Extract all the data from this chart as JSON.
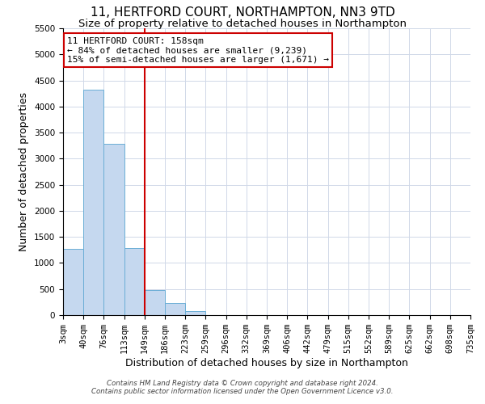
{
  "title": "11, HERTFORD COURT, NORTHAMPTON, NN3 9TD",
  "subtitle": "Size of property relative to detached houses in Northampton",
  "xlabel": "Distribution of detached houses by size in Northampton",
  "ylabel": "Number of detached properties",
  "bin_labels": [
    "3sqm",
    "40sqm",
    "76sqm",
    "113sqm",
    "149sqm",
    "186sqm",
    "223sqm",
    "259sqm",
    "296sqm",
    "332sqm",
    "369sqm",
    "406sqm",
    "442sqm",
    "479sqm",
    "515sqm",
    "552sqm",
    "589sqm",
    "625sqm",
    "662sqm",
    "698sqm",
    "735sqm"
  ],
  "bar_values": [
    1270,
    4330,
    3280,
    1290,
    480,
    230,
    75,
    0,
    0,
    0,
    0,
    0,
    0,
    0,
    0,
    0,
    0,
    0,
    0,
    0
  ],
  "bar_color": "#c5d8ef",
  "bar_edge_color": "#6baed6",
  "vline_x_index": 4,
  "vline_color": "#cc0000",
  "annotation_title": "11 HERTFORD COURT: 158sqm",
  "annotation_line1": "← 84% of detached houses are smaller (9,239)",
  "annotation_line2": "15% of semi-detached houses are larger (1,671) →",
  "annotation_box_color": "#cc0000",
  "ylim": [
    0,
    5500
  ],
  "yticks": [
    0,
    500,
    1000,
    1500,
    2000,
    2500,
    3000,
    3500,
    4000,
    4500,
    5000,
    5500
  ],
  "footnote1": "Contains HM Land Registry data © Crown copyright and database right 2024.",
  "footnote2": "Contains public sector information licensed under the Open Government Licence v3.0.",
  "bg_color": "#ffffff",
  "grid_color": "#d0d8e8",
  "title_fontsize": 11,
  "subtitle_fontsize": 9.5,
  "axis_label_fontsize": 9,
  "tick_fontsize": 7.5,
  "annot_fontsize": 8
}
